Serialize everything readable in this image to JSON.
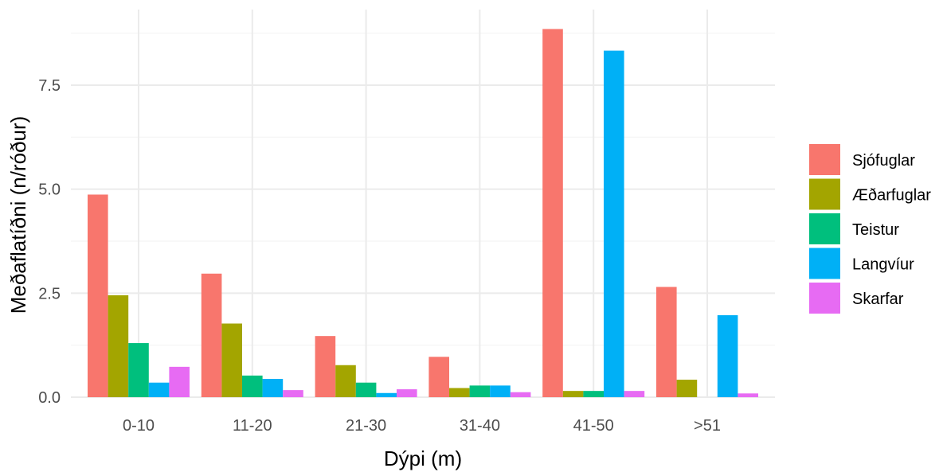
{
  "chart_data": {
    "type": "bar",
    "xlabel": "Dýpi (m)",
    "ylabel": "Meðaflatíðni (n/róður)",
    "categories": [
      "0-10",
      "11-20",
      "21-30",
      "31-40",
      "41-50",
      ">51"
    ],
    "ylim": [
      0,
      9
    ],
    "yticks": [
      0.0,
      2.5,
      5.0,
      7.5
    ],
    "ytick_labels": [
      "0.0",
      "2.5",
      "5.0",
      "7.5"
    ],
    "grid": true,
    "legend_position": "right",
    "series": [
      {
        "name": "Sjófuglar",
        "color": "#F8766D",
        "values": [
          4.87,
          2.97,
          1.47,
          0.97,
          8.85,
          2.65
        ]
      },
      {
        "name": "Æðarfuglar",
        "color": "#A3A500",
        "values": [
          2.45,
          1.77,
          0.77,
          0.22,
          0.15,
          0.42
        ]
      },
      {
        "name": "Teistur",
        "color": "#00BF7D",
        "values": [
          1.3,
          0.52,
          0.35,
          0.28,
          0.15,
          0.0
        ]
      },
      {
        "name": "Langvíur",
        "color": "#00B0F6",
        "values": [
          0.35,
          0.44,
          0.1,
          0.28,
          8.33,
          1.97
        ]
      },
      {
        "name": "Skarfar",
        "color": "#E76BF3",
        "values": [
          0.73,
          0.17,
          0.19,
          0.12,
          0.15,
          0.09
        ]
      }
    ]
  }
}
